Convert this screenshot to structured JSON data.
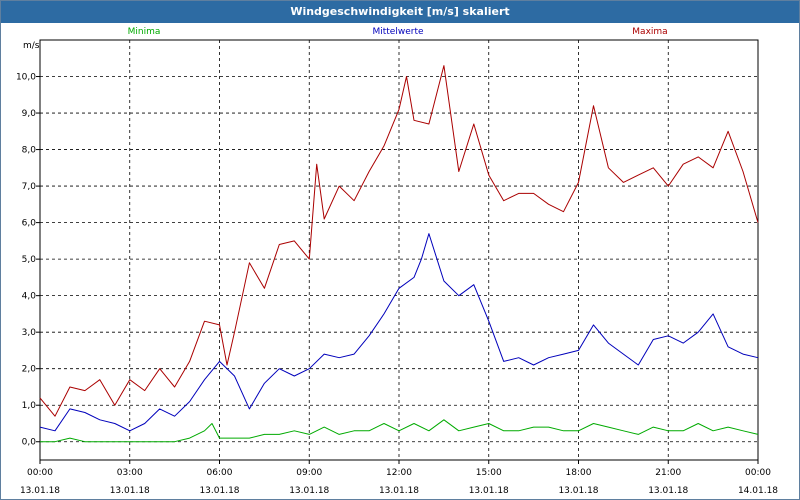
{
  "window": {
    "title": "Windgeschwindigkeit [m/s] skaliert"
  },
  "chart_data": {
    "type": "line",
    "title": "Windgeschwindigkeit [m/s] skaliert",
    "ylabel": "m/s",
    "xlabel": "",
    "ylim": [
      -0.5,
      11.0
    ],
    "xlim": [
      0,
      24
    ],
    "grid": true,
    "legend_position": "top",
    "ytick_labels": [
      "0,0",
      "1,0",
      "2,0",
      "3,0",
      "4,0",
      "5,0",
      "6,0",
      "7,0",
      "8,0",
      "9,0",
      "10,0"
    ],
    "xticks": [
      {
        "time": "00:00",
        "date": "13.01.18"
      },
      {
        "time": "03:00",
        "date": "13.01.18"
      },
      {
        "time": "06:00",
        "date": "13.01.18"
      },
      {
        "time": "09:00",
        "date": "13.01.18"
      },
      {
        "time": "12:00",
        "date": "13.01.18"
      },
      {
        "time": "15:00",
        "date": "13.01.18"
      },
      {
        "time": "18:00",
        "date": "13.01.18"
      },
      {
        "time": "21:00",
        "date": "13.01.18"
      },
      {
        "time": "00:00",
        "date": "14.01.18"
      }
    ],
    "series": [
      {
        "name": "Minima",
        "color": "#00aa00",
        "x": [
          0,
          0.5,
          1,
          1.5,
          2,
          2.5,
          3,
          3.5,
          4,
          4.5,
          5,
          5.5,
          5.75,
          6,
          6.5,
          7,
          7.5,
          8,
          8.5,
          9,
          9.5,
          10,
          10.5,
          11,
          11.5,
          12,
          12.5,
          13,
          13.5,
          14,
          14.5,
          15,
          15.5,
          16,
          16.5,
          17,
          17.5,
          18,
          18.5,
          19,
          19.5,
          20,
          20.5,
          21,
          21.5,
          22,
          22.5,
          23,
          23.5,
          24
        ],
        "y": [
          0.0,
          0.0,
          0.1,
          0.0,
          0.0,
          0.0,
          0.0,
          0.0,
          0.0,
          0.0,
          0.1,
          0.3,
          0.5,
          0.1,
          0.1,
          0.1,
          0.2,
          0.2,
          0.3,
          0.2,
          0.4,
          0.2,
          0.3,
          0.3,
          0.5,
          0.3,
          0.5,
          0.3,
          0.6,
          0.3,
          0.4,
          0.5,
          0.3,
          0.3,
          0.4,
          0.4,
          0.3,
          0.3,
          0.5,
          0.4,
          0.3,
          0.2,
          0.4,
          0.3,
          0.3,
          0.5,
          0.3,
          0.4,
          0.3,
          0.2
        ]
      },
      {
        "name": "Mittelwerte",
        "color": "#0000bb",
        "x": [
          0,
          0.5,
          1,
          1.5,
          2,
          2.5,
          3,
          3.5,
          4,
          4.5,
          5,
          5.5,
          6,
          6.5,
          7,
          7.5,
          8,
          8.5,
          9,
          9.5,
          10,
          10.5,
          11,
          11.5,
          12,
          12.5,
          12.75,
          13,
          13.5,
          14,
          14.5,
          15,
          15.5,
          16,
          16.5,
          17,
          17.5,
          18,
          18.5,
          19,
          19.5,
          20,
          20.5,
          21,
          21.5,
          22,
          22.5,
          23,
          23.5,
          24
        ],
        "y": [
          0.4,
          0.3,
          0.9,
          0.8,
          0.6,
          0.5,
          0.3,
          0.5,
          0.9,
          0.7,
          1.1,
          1.7,
          2.2,
          1.8,
          0.9,
          1.6,
          2.0,
          1.8,
          2.0,
          2.4,
          2.3,
          2.4,
          2.9,
          3.5,
          4.2,
          4.5,
          5.0,
          5.7,
          4.4,
          4.0,
          4.3,
          3.3,
          2.2,
          2.3,
          2.1,
          2.3,
          2.4,
          2.5,
          3.2,
          2.7,
          2.4,
          2.1,
          2.8,
          2.9,
          2.7,
          3.0,
          3.5,
          2.6,
          2.4,
          2.3
        ]
      },
      {
        "name": "Maxima",
        "color": "#aa0000",
        "x": [
          0,
          0.5,
          1,
          1.5,
          2,
          2.5,
          3,
          3.5,
          4,
          4.5,
          5,
          5.5,
          6,
          6.25,
          6.5,
          7,
          7.5,
          8,
          8.5,
          9,
          9.25,
          9.5,
          10,
          10.5,
          11,
          11.5,
          12,
          12.25,
          12.5,
          13,
          13.5,
          14,
          14.5,
          15,
          15.5,
          16,
          16.5,
          17,
          17.5,
          18,
          18.5,
          19,
          19.5,
          20,
          20.5,
          21,
          21.5,
          22,
          22.5,
          23,
          23.5,
          24
        ],
        "y": [
          1.2,
          0.7,
          1.5,
          1.4,
          1.7,
          1.0,
          1.7,
          1.4,
          2.0,
          1.5,
          2.2,
          3.3,
          3.2,
          2.1,
          3.0,
          4.9,
          4.2,
          5.4,
          5.5,
          5.0,
          7.6,
          6.1,
          7.0,
          6.6,
          7.4,
          8.1,
          9.1,
          10.0,
          8.8,
          8.7,
          10.3,
          7.4,
          8.7,
          7.3,
          6.6,
          6.8,
          6.8,
          6.5,
          6.3,
          7.1,
          9.2,
          7.5,
          7.1,
          7.3,
          7.5,
          7.0,
          7.6,
          7.8,
          7.5,
          8.5,
          7.4,
          6.0
        ]
      }
    ]
  }
}
